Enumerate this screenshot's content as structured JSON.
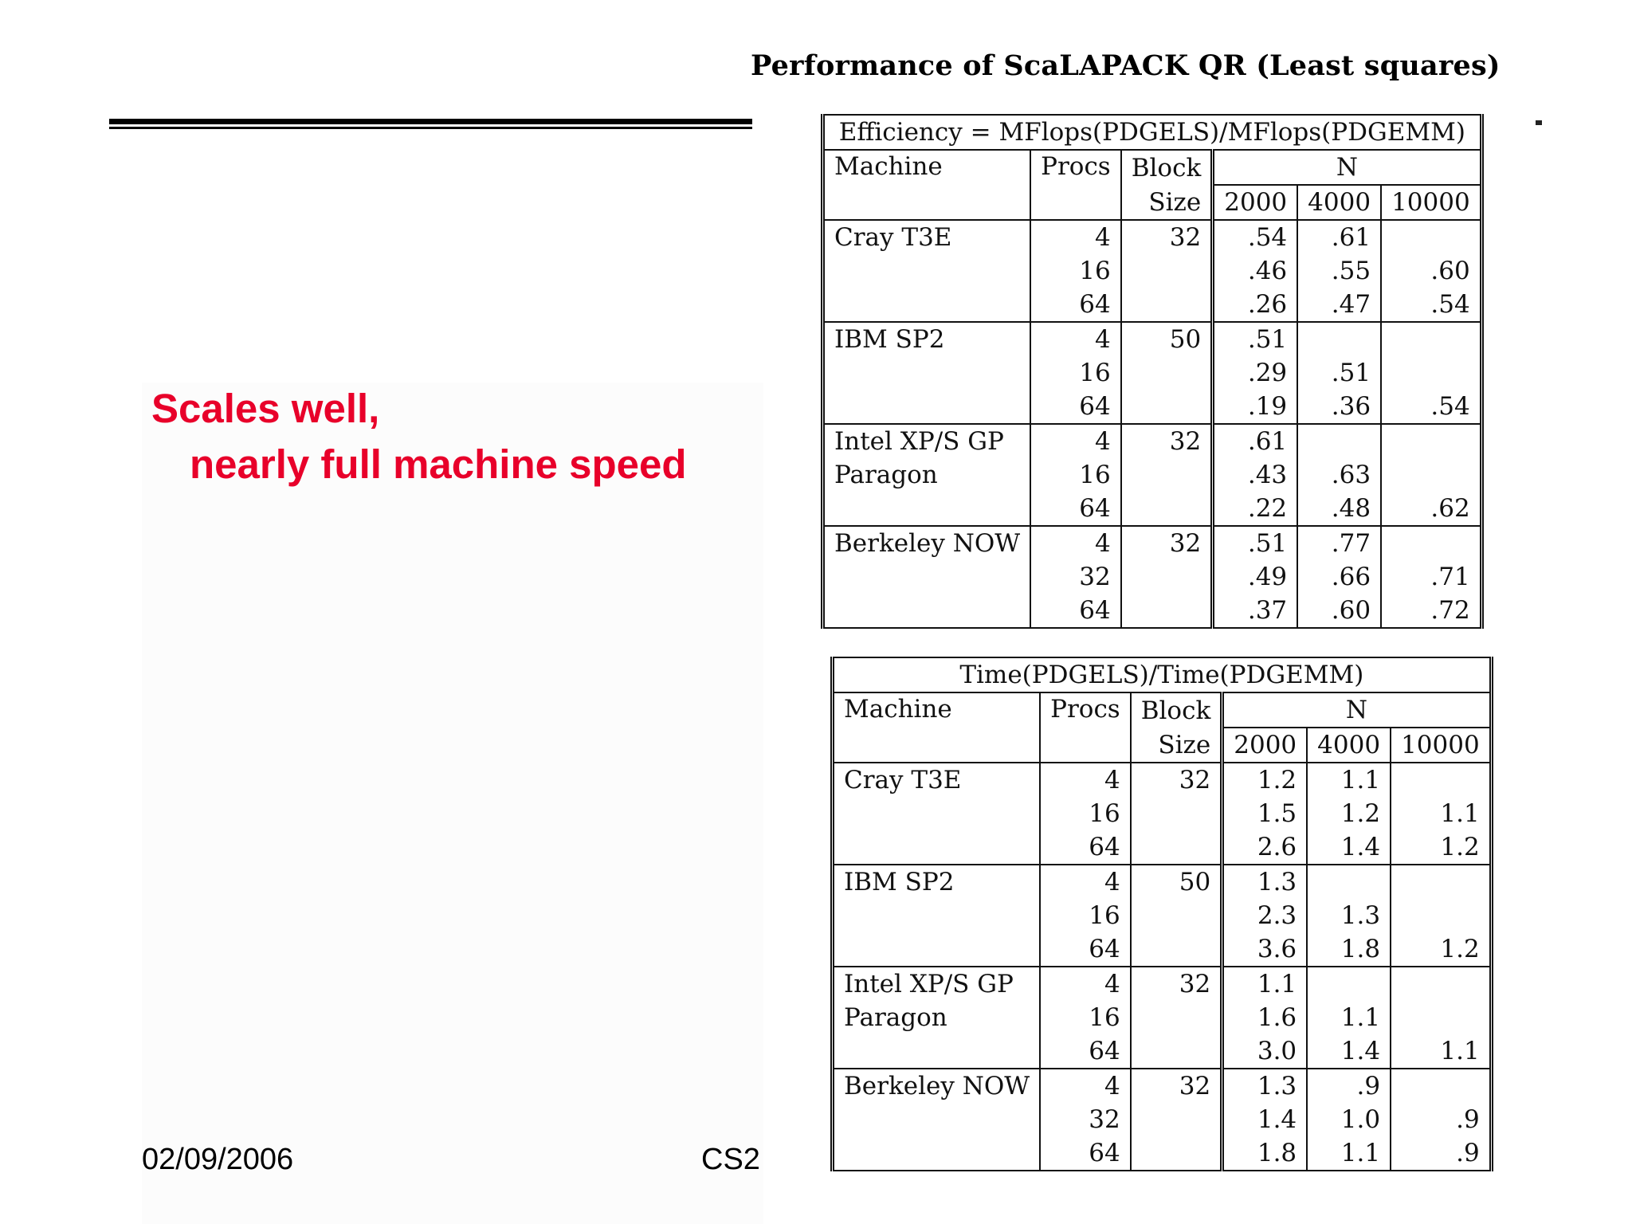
{
  "slide": {
    "title": "Performance of ScaLAPACK QR (Least squares)",
    "callout_line1": "Scales well,",
    "callout_line2": "nearly full machine speed",
    "footer_date": "02/09/2006",
    "footer_course": "CS2",
    "callout_color": "#e8002a"
  },
  "headers": {
    "machine": "Machine",
    "procs": "Procs",
    "block1": "Block",
    "block2": "Size",
    "n": "N",
    "n_values": [
      "2000",
      "4000",
      "10000"
    ]
  },
  "efficiency_table": {
    "title": "Efficiency = MFlops(PDGELS)/MFlops(PDGEMM)",
    "groups": [
      {
        "machine": [
          "Cray T3E",
          ""
        ],
        "block": "32",
        "rows": [
          [
            "4",
            ".54",
            ".61",
            ""
          ],
          [
            "16",
            ".46",
            ".55",
            ".60"
          ],
          [
            "64",
            ".26",
            ".47",
            ".54"
          ]
        ]
      },
      {
        "machine": [
          "IBM SP2",
          ""
        ],
        "block": "50",
        "rows": [
          [
            "4",
            ".51",
            "",
            ""
          ],
          [
            "16",
            ".29",
            ".51",
            ""
          ],
          [
            "64",
            ".19",
            ".36",
            ".54"
          ]
        ]
      },
      {
        "machine": [
          "Intel XP/S GP",
          "Paragon"
        ],
        "block": "32",
        "rows": [
          [
            "4",
            ".61",
            "",
            ""
          ],
          [
            "16",
            ".43",
            ".63",
            ""
          ],
          [
            "64",
            ".22",
            ".48",
            ".62"
          ]
        ]
      },
      {
        "machine": [
          "Berkeley NOW",
          ""
        ],
        "block": "32",
        "rows": [
          [
            "4",
            ".51",
            ".77",
            ""
          ],
          [
            "32",
            ".49",
            ".66",
            ".71"
          ],
          [
            "64",
            ".37",
            ".60",
            ".72"
          ]
        ]
      }
    ]
  },
  "time_table": {
    "title": "Time(PDGELS)/Time(PDGEMM)",
    "groups": [
      {
        "machine": [
          "Cray T3E",
          ""
        ],
        "block": "32",
        "rows": [
          [
            "4",
            "1.2",
            "1.1",
            ""
          ],
          [
            "16",
            "1.5",
            "1.2",
            "1.1"
          ],
          [
            "64",
            "2.6",
            "1.4",
            "1.2"
          ]
        ]
      },
      {
        "machine": [
          "IBM SP2",
          ""
        ],
        "block": "50",
        "rows": [
          [
            "4",
            "1.3",
            "",
            ""
          ],
          [
            "16",
            "2.3",
            "1.3",
            ""
          ],
          [
            "64",
            "3.6",
            "1.8",
            "1.2"
          ]
        ]
      },
      {
        "machine": [
          "Intel XP/S GP",
          "Paragon"
        ],
        "block": "32",
        "rows": [
          [
            "4",
            "1.1",
            "",
            ""
          ],
          [
            "16",
            "1.6",
            "1.1",
            ""
          ],
          [
            "64",
            "3.0",
            "1.4",
            "1.1"
          ]
        ]
      },
      {
        "machine": [
          "Berkeley NOW",
          ""
        ],
        "block": "32",
        "rows": [
          [
            "4",
            "1.3",
            ".9",
            ""
          ],
          [
            "32",
            "1.4",
            "1.0",
            ".9"
          ],
          [
            "64",
            "1.8",
            "1.1",
            ".9"
          ]
        ]
      }
    ]
  }
}
